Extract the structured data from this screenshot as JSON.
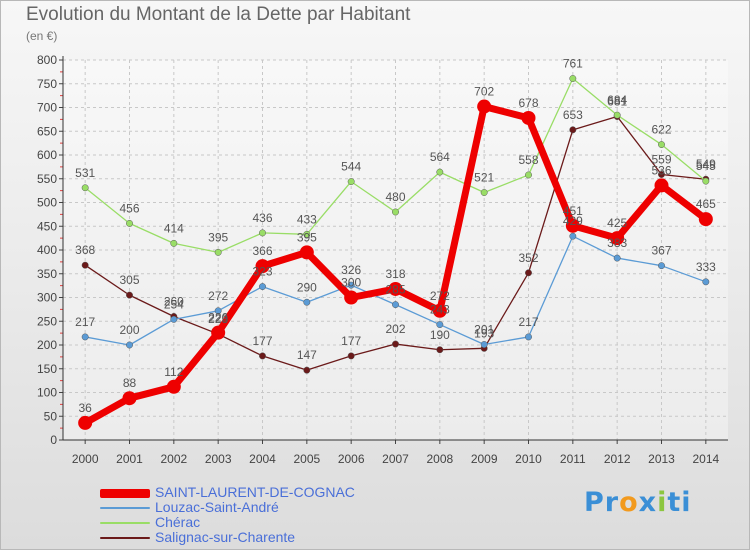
{
  "title": "Evolution du Montant de la Dette par Habitant",
  "subtitle": "(en €)",
  "logo": {
    "parts": [
      "Pr",
      "o",
      "x",
      "i",
      "ti"
    ]
  },
  "chart_data": {
    "type": "line",
    "title": "Evolution du Montant de la Dette par Habitant",
    "ylabel": "(en €)",
    "xlabel": "",
    "categories": [
      "2000",
      "2001",
      "2002",
      "2003",
      "2004",
      "2005",
      "2006",
      "2007",
      "2008",
      "2009",
      "2010",
      "2011",
      "2012",
      "2013",
      "2014"
    ],
    "ylim": [
      0,
      800
    ],
    "yticks": [
      0,
      50,
      100,
      150,
      200,
      250,
      300,
      350,
      400,
      450,
      500,
      550,
      600,
      650,
      700,
      750,
      800
    ],
    "grid": true,
    "series": [
      {
        "name": "Salignac-sur-Charente",
        "color": "#6b1a1a",
        "values": [
          368,
          305,
          260,
          223,
          177,
          147,
          177,
          202,
          190,
          193,
          352,
          653,
          681,
          559,
          549
        ]
      },
      {
        "name": "Chérac",
        "color": "#99dd66",
        "values": [
          531,
          456,
          414,
          395,
          436,
          433,
          544,
          480,
          564,
          521,
          558,
          761,
          684,
          622,
          545
        ]
      },
      {
        "name": "Louzac-Saint-André",
        "color": "#5b9bd5",
        "values": [
          217,
          200,
          254,
          272,
          323,
          290,
          326,
          285,
          243,
          201,
          217,
          429,
          383,
          367,
          333
        ]
      },
      {
        "name": "SAINT-LAURENT-DE-COGNAC",
        "color": "#ee0000",
        "values": [
          36,
          88,
          112,
          226,
          366,
          395,
          300,
          318,
          272,
          702,
          678,
          451,
          425,
          536,
          465
        ]
      }
    ],
    "legend": [
      "SAINT-LAURENT-DE-COGNAC",
      "Louzac-Saint-André",
      "Chérac",
      "Salignac-sur-Charente"
    ]
  }
}
